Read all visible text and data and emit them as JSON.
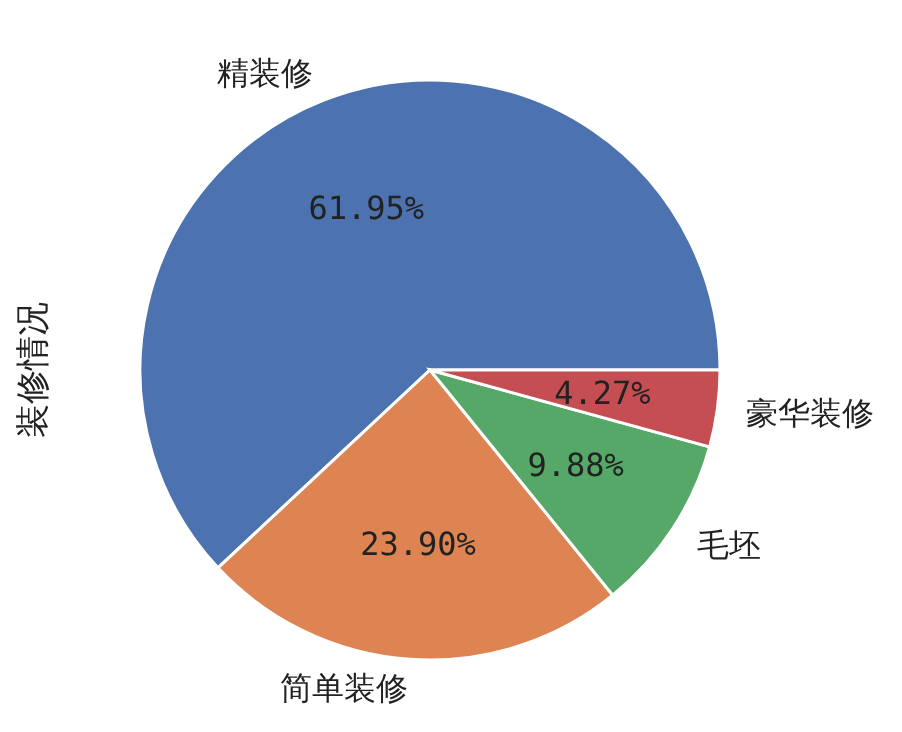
{
  "chart_data": {
    "type": "pie",
    "ylabel": "装修情况",
    "categories": [
      "精装修",
      "简单装修",
      "毛坯",
      "豪华装修"
    ],
    "values": [
      61.95,
      23.9,
      9.88,
      4.27
    ],
    "colors": [
      "#4c72b0",
      "#dd8452",
      "#55a868",
      "#c44e52"
    ],
    "value_labels": [
      "61.95%",
      "23.90%",
      "9.88%",
      "4.27%"
    ]
  }
}
